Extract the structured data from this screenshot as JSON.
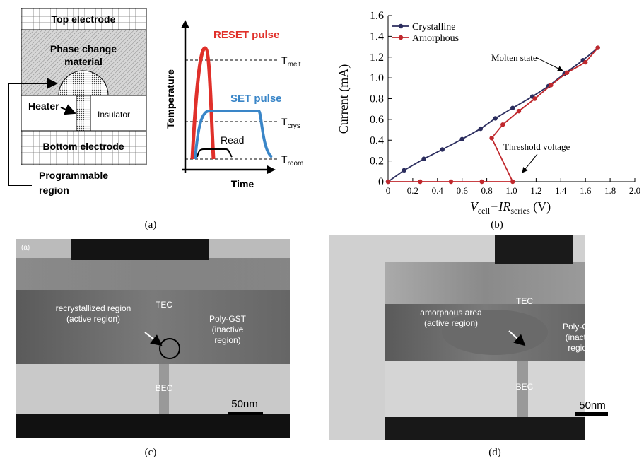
{
  "panel_a": {
    "top_electrode": "Top electrode",
    "pcm_line1": "Phase change",
    "pcm_line2": "material",
    "heater": "Heater",
    "insulator": "Insulator",
    "bottom_electrode": "Bottom electrode",
    "prog_line1": "Programmable",
    "prog_line2": "region",
    "reset": "RESET pulse",
    "set": "SET pulse",
    "read": "Read",
    "ylabel": "Temperature",
    "xlabel": "Time",
    "t_melt": {
      "main": "T",
      "sub": "melt"
    },
    "t_crys": {
      "main": "T",
      "sub": "crys"
    },
    "t_room": {
      "main": "T",
      "sub": "room"
    },
    "label": "(a)"
  },
  "chart_data": {
    "type": "line",
    "ylabel": "Current (mA)",
    "xlabel": {
      "v": "V",
      "cell": "cell",
      "ir": "−IR",
      "series": "series",
      "unit": " (V)"
    },
    "series": [
      {
        "name": "Crystalline",
        "color": "#2b2d5e",
        "x": [
          0,
          0.13,
          0.29,
          0.44,
          0.6,
          0.75,
          0.87,
          1.01,
          1.17,
          1.3,
          1.43,
          1.58,
          1.7
        ],
        "values": [
          0,
          0.11,
          0.22,
          0.31,
          0.41,
          0.51,
          0.61,
          0.71,
          0.82,
          0.92,
          1.04,
          1.17,
          1.29
        ]
      },
      {
        "name": "Amorphous",
        "color": "#c0282d",
        "x": [
          0,
          0.26,
          0.51,
          0.76,
          1.01,
          0.84,
          0.93,
          1.06,
          1.19,
          1.32,
          1.45,
          1.6,
          1.7
        ],
        "values": [
          0,
          0,
          0,
          0,
          0,
          0.42,
          0.55,
          0.68,
          0.8,
          0.93,
          1.05,
          1.15,
          1.29
        ]
      }
    ],
    "xlim": [
      0,
      2
    ],
    "xticks": [
      0,
      0.2,
      0.4,
      0.6,
      0.8,
      {
        "value": 1,
        "label": "1.0"
      },
      1.2,
      1.4,
      1.6,
      1.8,
      {
        "value": 2,
        "label": "2.0"
      }
    ],
    "ylim": [
      0,
      1.6
    ],
    "yticks": [
      0,
      0.2,
      0.4,
      0.6,
      0.8,
      {
        "value": 1,
        "label": "1.0"
      },
      1.2,
      1.4,
      1.6
    ],
    "legend": "upper left",
    "annotations": [
      "Molten state",
      "Threshold voltage"
    ],
    "label": "(b)"
  },
  "panel_c": {
    "corner": "(a)",
    "tec": "TEC",
    "region_line1": "recrystallized region",
    "region_line2": "(active region)",
    "gst_line1": "Poly-GST",
    "gst_line2": "(inactive",
    "gst_line3": "region)",
    "bec": "BEC",
    "scale": "50nm",
    "label": "(c)"
  },
  "panel_d": {
    "tec": "TEC",
    "region_line1": "amorphous area",
    "region_line2": "(active region)",
    "gst_line1": "Poly-GST",
    "gst_line2": "(inactive",
    "gst_line3": "region)",
    "bec": "BEC",
    "scale": "50nm",
    "label": "(d)"
  }
}
